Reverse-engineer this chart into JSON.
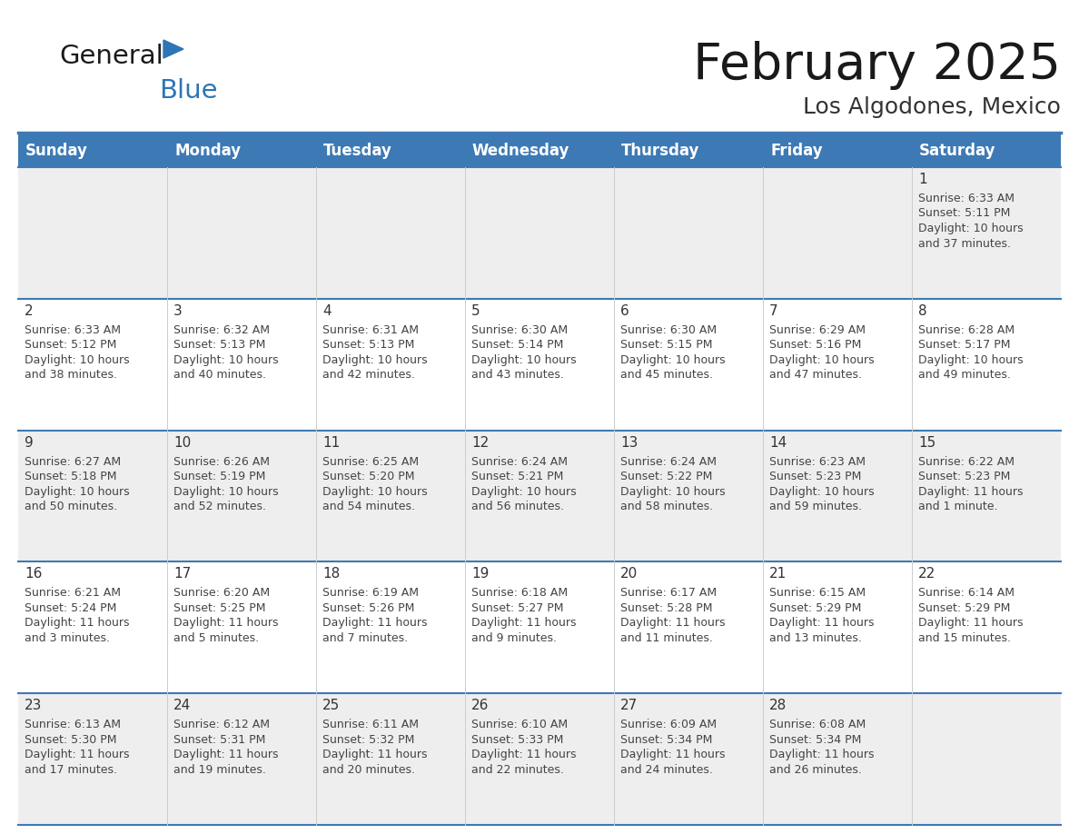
{
  "title": "February 2025",
  "subtitle": "Los Algodones, Mexico",
  "header_bg": "#3d7ab5",
  "header_text": "#ffffff",
  "header_days": [
    "Sunday",
    "Monday",
    "Tuesday",
    "Wednesday",
    "Thursday",
    "Friday",
    "Saturday"
  ],
  "row_bg_odd": "#eeeeee",
  "row_bg_even": "#ffffff",
  "divider_color": "#3d7ab5",
  "text_color": "#444444",
  "day_number_color": "#333333",
  "logo_color_general": "#1a1a1a",
  "logo_color_blue": "#2e75b6",
  "logo_triangle_color": "#2e75b6",
  "calendar_data": [
    [
      {
        "day": "",
        "sunrise": "",
        "sunset": "",
        "daylight": ""
      },
      {
        "day": "",
        "sunrise": "",
        "sunset": "",
        "daylight": ""
      },
      {
        "day": "",
        "sunrise": "",
        "sunset": "",
        "daylight": ""
      },
      {
        "day": "",
        "sunrise": "",
        "sunset": "",
        "daylight": ""
      },
      {
        "day": "",
        "sunrise": "",
        "sunset": "",
        "daylight": ""
      },
      {
        "day": "",
        "sunrise": "",
        "sunset": "",
        "daylight": ""
      },
      {
        "day": "1",
        "sunrise": "6:33 AM",
        "sunset": "5:11 PM",
        "daylight": "10 hours\nand 37 minutes."
      }
    ],
    [
      {
        "day": "2",
        "sunrise": "6:33 AM",
        "sunset": "5:12 PM",
        "daylight": "10 hours\nand 38 minutes."
      },
      {
        "day": "3",
        "sunrise": "6:32 AM",
        "sunset": "5:13 PM",
        "daylight": "10 hours\nand 40 minutes."
      },
      {
        "day": "4",
        "sunrise": "6:31 AM",
        "sunset": "5:13 PM",
        "daylight": "10 hours\nand 42 minutes."
      },
      {
        "day": "5",
        "sunrise": "6:30 AM",
        "sunset": "5:14 PM",
        "daylight": "10 hours\nand 43 minutes."
      },
      {
        "day": "6",
        "sunrise": "6:30 AM",
        "sunset": "5:15 PM",
        "daylight": "10 hours\nand 45 minutes."
      },
      {
        "day": "7",
        "sunrise": "6:29 AM",
        "sunset": "5:16 PM",
        "daylight": "10 hours\nand 47 minutes."
      },
      {
        "day": "8",
        "sunrise": "6:28 AM",
        "sunset": "5:17 PM",
        "daylight": "10 hours\nand 49 minutes."
      }
    ],
    [
      {
        "day": "9",
        "sunrise": "6:27 AM",
        "sunset": "5:18 PM",
        "daylight": "10 hours\nand 50 minutes."
      },
      {
        "day": "10",
        "sunrise": "6:26 AM",
        "sunset": "5:19 PM",
        "daylight": "10 hours\nand 52 minutes."
      },
      {
        "day": "11",
        "sunrise": "6:25 AM",
        "sunset": "5:20 PM",
        "daylight": "10 hours\nand 54 minutes."
      },
      {
        "day": "12",
        "sunrise": "6:24 AM",
        "sunset": "5:21 PM",
        "daylight": "10 hours\nand 56 minutes."
      },
      {
        "day": "13",
        "sunrise": "6:24 AM",
        "sunset": "5:22 PM",
        "daylight": "10 hours\nand 58 minutes."
      },
      {
        "day": "14",
        "sunrise": "6:23 AM",
        "sunset": "5:23 PM",
        "daylight": "10 hours\nand 59 minutes."
      },
      {
        "day": "15",
        "sunrise": "6:22 AM",
        "sunset": "5:23 PM",
        "daylight": "11 hours\nand 1 minute."
      }
    ],
    [
      {
        "day": "16",
        "sunrise": "6:21 AM",
        "sunset": "5:24 PM",
        "daylight": "11 hours\nand 3 minutes."
      },
      {
        "day": "17",
        "sunrise": "6:20 AM",
        "sunset": "5:25 PM",
        "daylight": "11 hours\nand 5 minutes."
      },
      {
        "day": "18",
        "sunrise": "6:19 AM",
        "sunset": "5:26 PM",
        "daylight": "11 hours\nand 7 minutes."
      },
      {
        "day": "19",
        "sunrise": "6:18 AM",
        "sunset": "5:27 PM",
        "daylight": "11 hours\nand 9 minutes."
      },
      {
        "day": "20",
        "sunrise": "6:17 AM",
        "sunset": "5:28 PM",
        "daylight": "11 hours\nand 11 minutes."
      },
      {
        "day": "21",
        "sunrise": "6:15 AM",
        "sunset": "5:29 PM",
        "daylight": "11 hours\nand 13 minutes."
      },
      {
        "day": "22",
        "sunrise": "6:14 AM",
        "sunset": "5:29 PM",
        "daylight": "11 hours\nand 15 minutes."
      }
    ],
    [
      {
        "day": "23",
        "sunrise": "6:13 AM",
        "sunset": "5:30 PM",
        "daylight": "11 hours\nand 17 minutes."
      },
      {
        "day": "24",
        "sunrise": "6:12 AM",
        "sunset": "5:31 PM",
        "daylight": "11 hours\nand 19 minutes."
      },
      {
        "day": "25",
        "sunrise": "6:11 AM",
        "sunset": "5:32 PM",
        "daylight": "11 hours\nand 20 minutes."
      },
      {
        "day": "26",
        "sunrise": "6:10 AM",
        "sunset": "5:33 PM",
        "daylight": "11 hours\nand 22 minutes."
      },
      {
        "day": "27",
        "sunrise": "6:09 AM",
        "sunset": "5:34 PM",
        "daylight": "11 hours\nand 24 minutes."
      },
      {
        "day": "28",
        "sunrise": "6:08 AM",
        "sunset": "5:34 PM",
        "daylight": "11 hours\nand 26 minutes."
      },
      {
        "day": "",
        "sunrise": "",
        "sunset": "",
        "daylight": ""
      }
    ]
  ]
}
